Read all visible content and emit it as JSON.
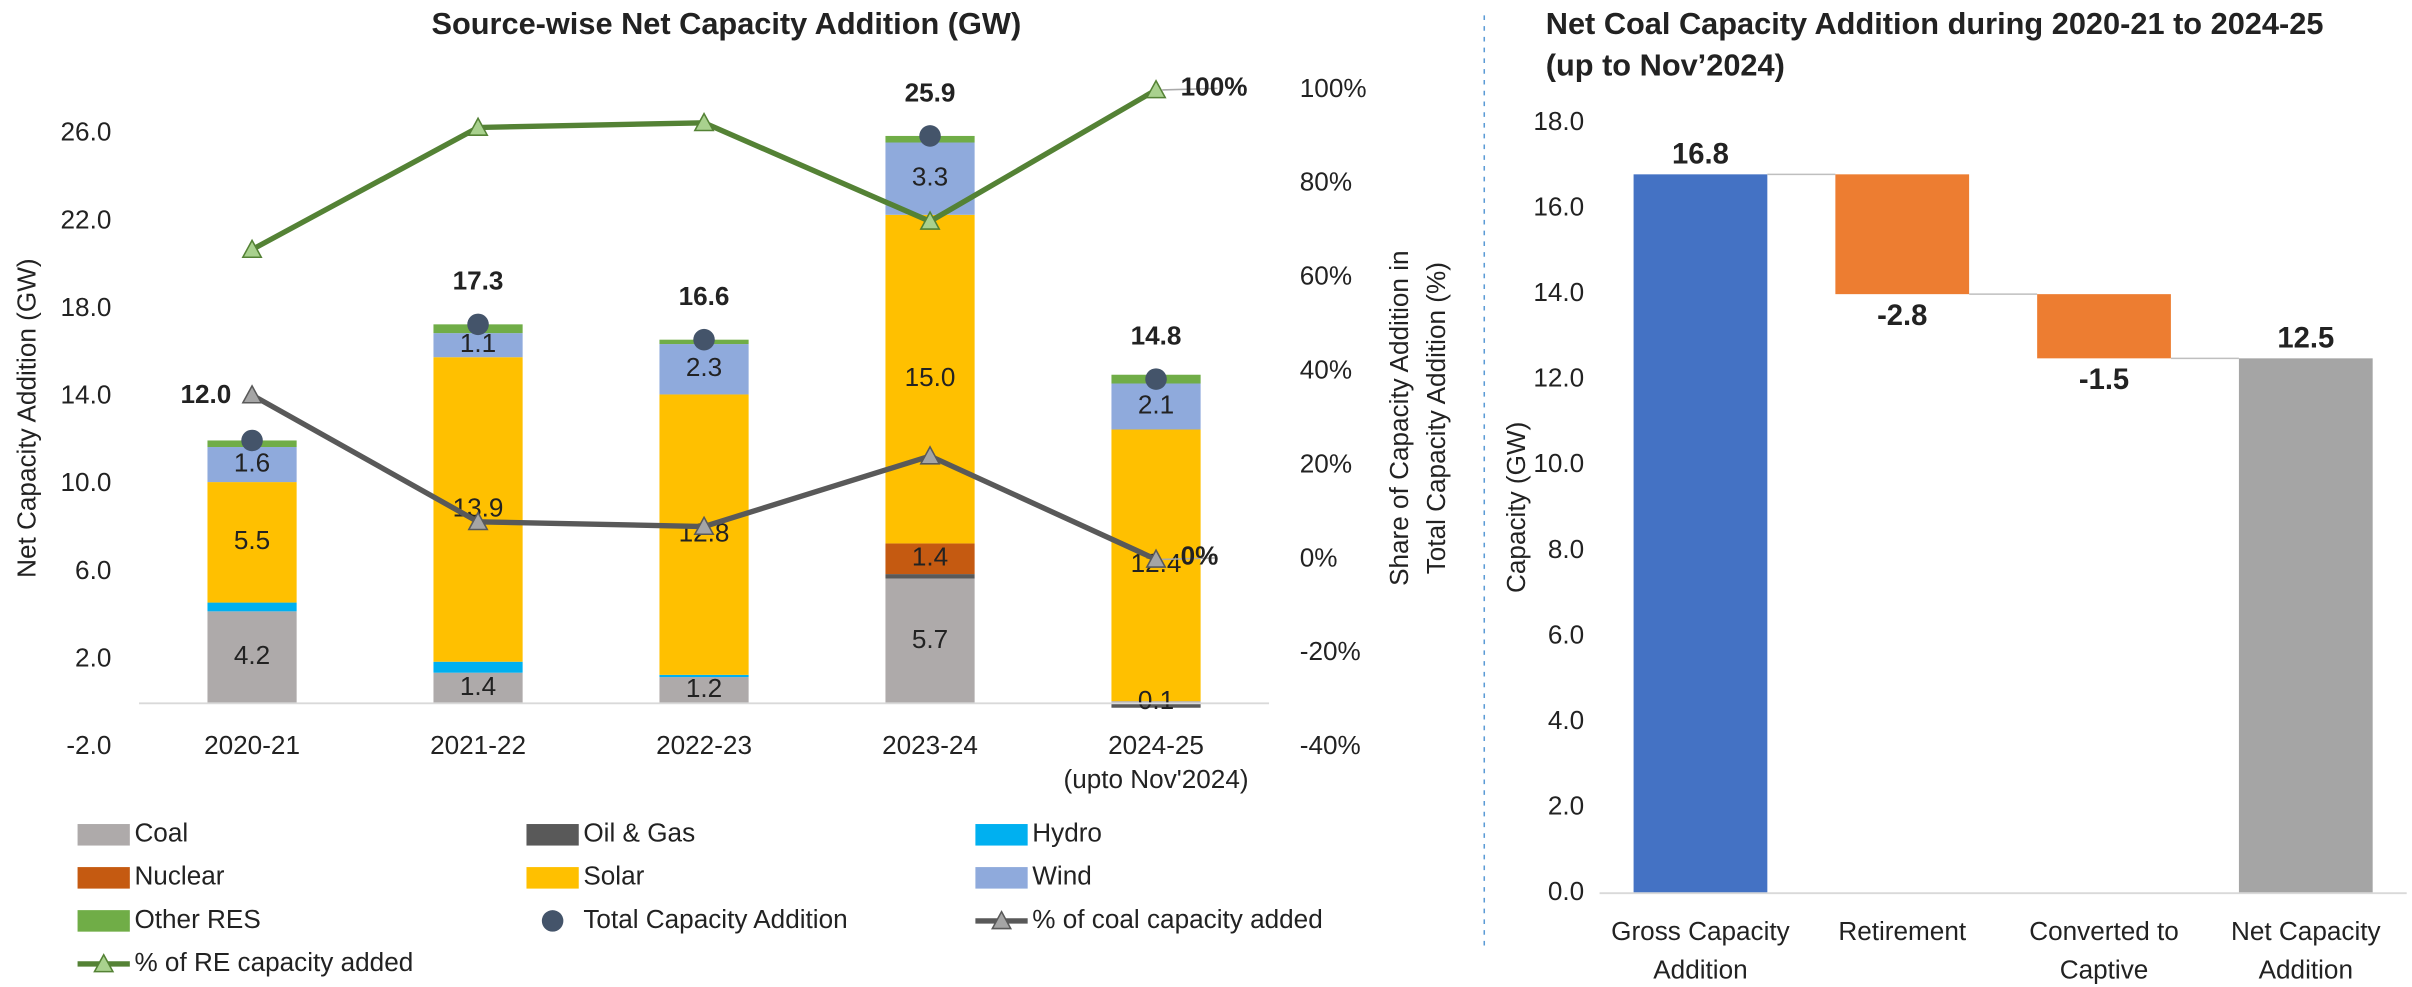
{
  "chart_data": [
    {
      "type": "bar",
      "stacked": true,
      "title": "Source-wise Net Capacity Addition (GW)",
      "ylabel": "Net Capacity Addition (GW)",
      "y2label": "Share of Capacity Addition in\nTotal Capacity Addition (%)",
      "categories": [
        "2020-21",
        "2021-22",
        "2022-23",
        "2023-24",
        "2024-25\n(upto Nov'2024)"
      ],
      "ylim": [
        -2,
        28
      ],
      "yticks": [
        {
          "value": -2,
          "label": "-2.0"
        },
        {
          "value": 2,
          "label": "2.0"
        },
        {
          "value": 6,
          "label": "6.0"
        },
        {
          "value": 10,
          "label": "10.0"
        },
        {
          "value": 14,
          "label": "14.0"
        },
        {
          "value": 18,
          "label": "18.0"
        },
        {
          "value": 22,
          "label": "22.0"
        },
        {
          "value": 26,
          "label": "26.0"
        }
      ],
      "y2lim": [
        -40,
        100
      ],
      "y2ticks": [
        {
          "value": -40,
          "label": "-40%"
        },
        {
          "value": -20,
          "label": "-20%"
        },
        {
          "value": 0,
          "label": "0%"
        },
        {
          "value": 20,
          "label": "20%"
        },
        {
          "value": 40,
          "label": "40%"
        },
        {
          "value": 60,
          "label": "60%"
        },
        {
          "value": 80,
          "label": "80%"
        },
        {
          "value": 100,
          "label": "100%"
        }
      ],
      "legend": "bottom",
      "series": [
        {
          "name": "Coal",
          "type": "bar",
          "color": "#aeaaaa",
          "values": [
            4.2,
            1.4,
            1.2,
            5.7,
            0.1
          ],
          "value_labels": [
            "4.2",
            "1.4",
            "1.2",
            "5.7",
            "0.1"
          ]
        },
        {
          "name": "Oil & Gas",
          "type": "bar",
          "color": "#595959",
          "values": [
            0,
            0,
            0,
            0.2,
            -0.2
          ]
        },
        {
          "name": "Hydro",
          "type": "bar",
          "color": "#00b0f0",
          "values": [
            0.4,
            0.5,
            0.1,
            0,
            0
          ]
        },
        {
          "name": "Nuclear",
          "type": "bar",
          "color": "#c55a11",
          "values": [
            0,
            0,
            0,
            1.4,
            0
          ],
          "value_labels": [
            null,
            null,
            null,
            "1.4",
            null
          ]
        },
        {
          "name": "Solar",
          "type": "bar",
          "color": "#ffc000",
          "values": [
            5.5,
            13.9,
            12.8,
            15.0,
            12.4
          ],
          "value_labels": [
            "5.5",
            "13.9",
            "12.8",
            "15.0",
            "12.4"
          ]
        },
        {
          "name": "Wind",
          "type": "bar",
          "color": "#8faadc",
          "values": [
            1.6,
            1.1,
            2.3,
            3.3,
            2.1
          ],
          "value_labels": [
            "1.6",
            "1.1",
            "2.3",
            "3.3",
            "2.1"
          ]
        },
        {
          "name": "Other RES",
          "type": "bar",
          "color": "#70ad47",
          "values": [
            0.3,
            0.4,
            0.2,
            0.3,
            0.4
          ]
        },
        {
          "name": "Total Capacity Addition",
          "type": "scatter",
          "color": "#44546a",
          "values": [
            12.0,
            17.3,
            16.6,
            25.9,
            14.8
          ],
          "value_labels": [
            "12.0",
            "17.3",
            "16.6",
            "25.9",
            "14.8"
          ]
        },
        {
          "name": "% of coal capacity added",
          "type": "line",
          "axis": "y2",
          "color": "#595959",
          "marker_color": "#a5a5a5",
          "values": [
            35,
            8,
            7,
            22,
            0
          ],
          "value_labels": [
            null,
            null,
            null,
            null,
            "0%"
          ]
        },
        {
          "name": "% of RE capacity added",
          "type": "line",
          "axis": "y2",
          "color": "#548235",
          "marker_color": "#a9d18e",
          "values": [
            66,
            92,
            93,
            72,
            100
          ],
          "value_labels": [
            null,
            null,
            null,
            null,
            "100%"
          ]
        }
      ]
    },
    {
      "type": "waterfall",
      "title": "Net Coal Capacity Addition during 2020-21 to 2024-25\n(up to Nov’2024)",
      "ylabel": "Capacity (GW)",
      "categories": [
        "Gross Capacity\nAddition",
        "Retirement",
        "Converted to\nCaptive",
        "Net Capacity\nAddition"
      ],
      "values": [
        16.8,
        -2.8,
        -1.5,
        12.5
      ],
      "value_labels": [
        "16.8",
        "-2.8",
        "-1.5",
        "12.5"
      ],
      "measures": [
        "absolute",
        "relative",
        "relative",
        "total"
      ],
      "colors": [
        "#4472c4",
        "#ed7d31",
        "#ed7d31",
        "#a5a5a5"
      ],
      "ylim": [
        0,
        18
      ],
      "yticks": [
        {
          "value": 0,
          "label": "0.0"
        },
        {
          "value": 2,
          "label": "2.0"
        },
        {
          "value": 4,
          "label": "4.0"
        },
        {
          "value": 6,
          "label": "6.0"
        },
        {
          "value": 8,
          "label": "8.0"
        },
        {
          "value": 10,
          "label": "10.0"
        },
        {
          "value": 12,
          "label": "12.0"
        },
        {
          "value": 14,
          "label": "14.0"
        },
        {
          "value": 16,
          "label": "16.0"
        },
        {
          "value": 18,
          "label": "18.0"
        }
      ]
    }
  ]
}
